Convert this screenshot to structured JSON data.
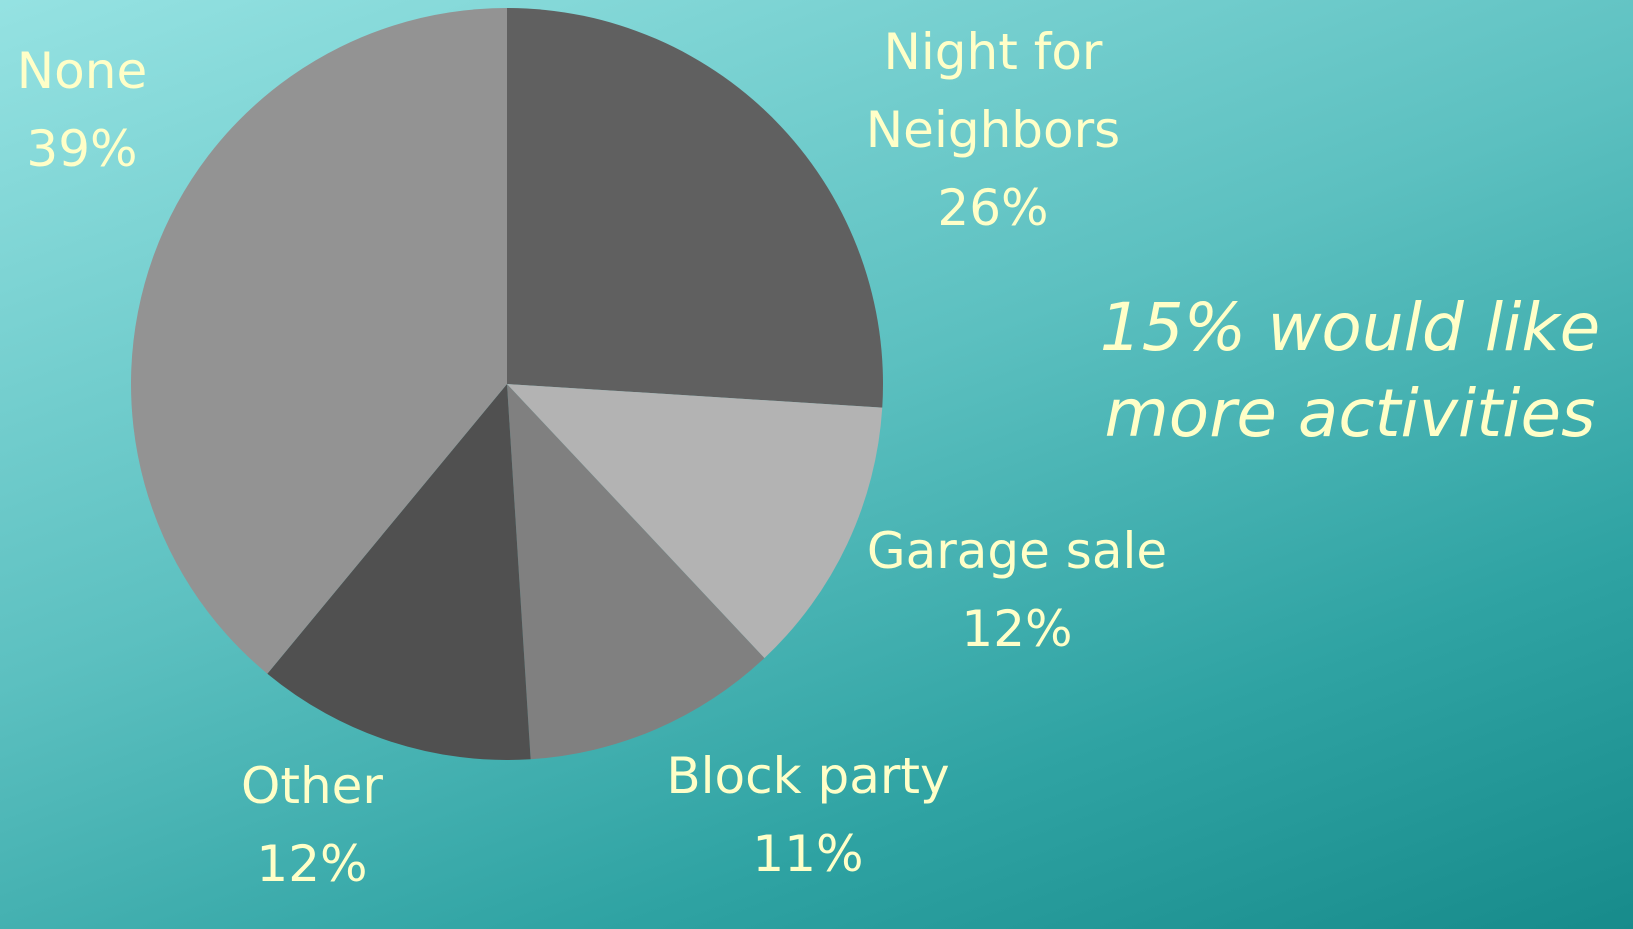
{
  "chart_data": {
    "type": "pie",
    "categories": [
      "Night for Neighbors",
      "Garage sale",
      "Block party",
      "Other",
      "None"
    ],
    "values": [
      26,
      12,
      11,
      12,
      39
    ],
    "value_labels": [
      "26%",
      "12%",
      "11%",
      "12%",
      "39%"
    ],
    "colors": [
      "#606060",
      "#b3b3b3",
      "#808080",
      "#505050",
      "#939393"
    ],
    "annotation": "15% would like more activities"
  }
}
